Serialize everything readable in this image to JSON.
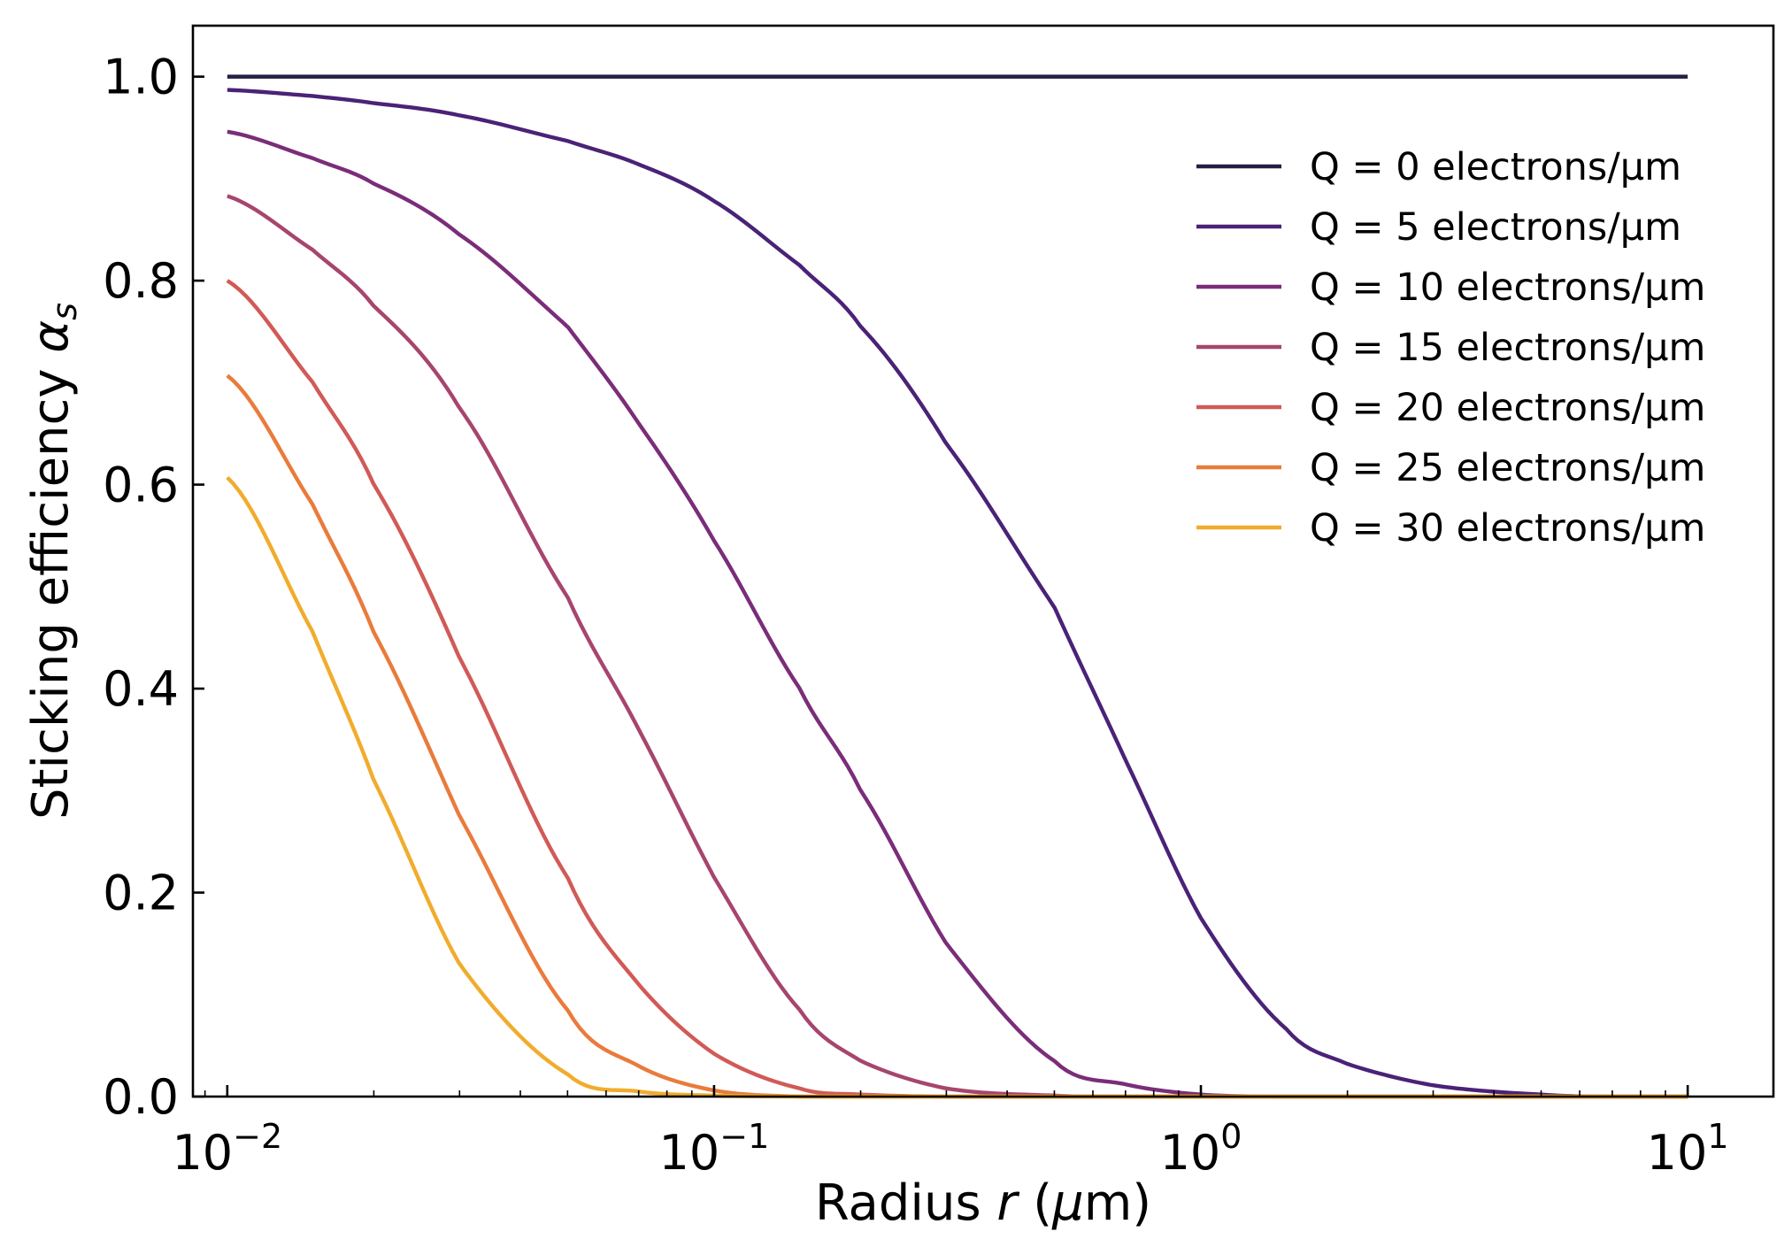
{
  "chart_data": {
    "type": "line",
    "xscale": "log",
    "xlim": [
      0.0085,
      15
    ],
    "ylim": [
      0.0,
      1.05
    ],
    "xlabel": {
      "prefix": "Radius ",
      "var": "r",
      "open": " (",
      "unit_var": "μ",
      "unit_rest": "m)"
    },
    "ylabel": {
      "prefix": "Sticking efficiency ",
      "var": "α",
      "sub": "s"
    },
    "x_ticks": [
      {
        "value": 0.01,
        "base": "10",
        "exp": "−2"
      },
      {
        "value": 0.1,
        "base": "10",
        "exp": "−1"
      },
      {
        "value": 1,
        "base": "10",
        "exp": "0"
      },
      {
        "value": 10,
        "base": "10",
        "exp": "1"
      }
    ],
    "y_ticks": [
      {
        "value": 0.0,
        "label": "0.0"
      },
      {
        "value": 0.2,
        "label": "0.2"
      },
      {
        "value": 0.4,
        "label": "0.4"
      },
      {
        "value": 0.6,
        "label": "0.6"
      },
      {
        "value": 0.8,
        "label": "0.8"
      },
      {
        "value": 1.0,
        "label": "1.0"
      }
    ],
    "grid": false,
    "legend_position": "top-right",
    "x": [
      0.01,
      0.015,
      0.02,
      0.03,
      0.05,
      0.07,
      0.1,
      0.15,
      0.2,
      0.3,
      0.5,
      0.7,
      1,
      1.5,
      2,
      3,
      5,
      7,
      10
    ],
    "series": [
      {
        "name": "Q = 0 electrons/μm",
        "color": "#231f45",
        "values": [
          1.0,
          1.0,
          1.0,
          1.0,
          1.0,
          1.0,
          1.0,
          1.0,
          1.0,
          1.0,
          1.0,
          1.0,
          1.0,
          1.0,
          1.0,
          1.0,
          1.0,
          1.0,
          1.0
        ]
      },
      {
        "name": "Q = 5 electrons/μm",
        "color": "#4a2277",
        "values": [
          0.987,
          0.981,
          0.974,
          0.962,
          0.937,
          0.914,
          0.878,
          0.815,
          0.755,
          0.64,
          0.48,
          0.33,
          0.175,
          0.066,
          0.032,
          0.011,
          0.002,
          0.0,
          0.0
        ]
      },
      {
        "name": "Q = 10 electrons/μm",
        "color": "#7a2d79",
        "values": [
          0.946,
          0.92,
          0.895,
          0.845,
          0.755,
          0.66,
          0.545,
          0.4,
          0.3,
          0.15,
          0.035,
          0.012,
          0.002,
          0.0,
          0.0,
          0.0,
          0.0,
          0.0,
          0.0
        ]
      },
      {
        "name": "Q = 15 electrons/μm",
        "color": "#a7456e",
        "values": [
          0.883,
          0.83,
          0.775,
          0.675,
          0.49,
          0.36,
          0.215,
          0.085,
          0.035,
          0.008,
          0.001,
          0.0,
          0.0,
          0.0,
          0.0,
          0.0,
          0.0,
          0.0,
          0.0
        ]
      },
      {
        "name": "Q = 20 electrons/μm",
        "color": "#d15a57",
        "values": [
          0.8,
          0.7,
          0.6,
          0.43,
          0.215,
          0.11,
          0.042,
          0.008,
          0.002,
          0.0,
          0.0,
          0.0,
          0.0,
          0.0,
          0.0,
          0.0,
          0.0,
          0.0,
          0.0
        ]
      },
      {
        "name": "Q = 25 electrons/μm",
        "color": "#e97b3c",
        "values": [
          0.707,
          0.58,
          0.455,
          0.275,
          0.085,
          0.03,
          0.006,
          0.0,
          0.0,
          0.0,
          0.0,
          0.0,
          0.0,
          0.0,
          0.0,
          0.0,
          0.0,
          0.0,
          0.0
        ]
      },
      {
        "name": "Q = 30 electrons/μm",
        "color": "#f1ac2d",
        "values": [
          0.607,
          0.455,
          0.31,
          0.13,
          0.022,
          0.005,
          0.001,
          0.0,
          0.0,
          0.0,
          0.0,
          0.0,
          0.0,
          0.0,
          0.0,
          0.0,
          0.0,
          0.0,
          0.0
        ]
      }
    ]
  }
}
